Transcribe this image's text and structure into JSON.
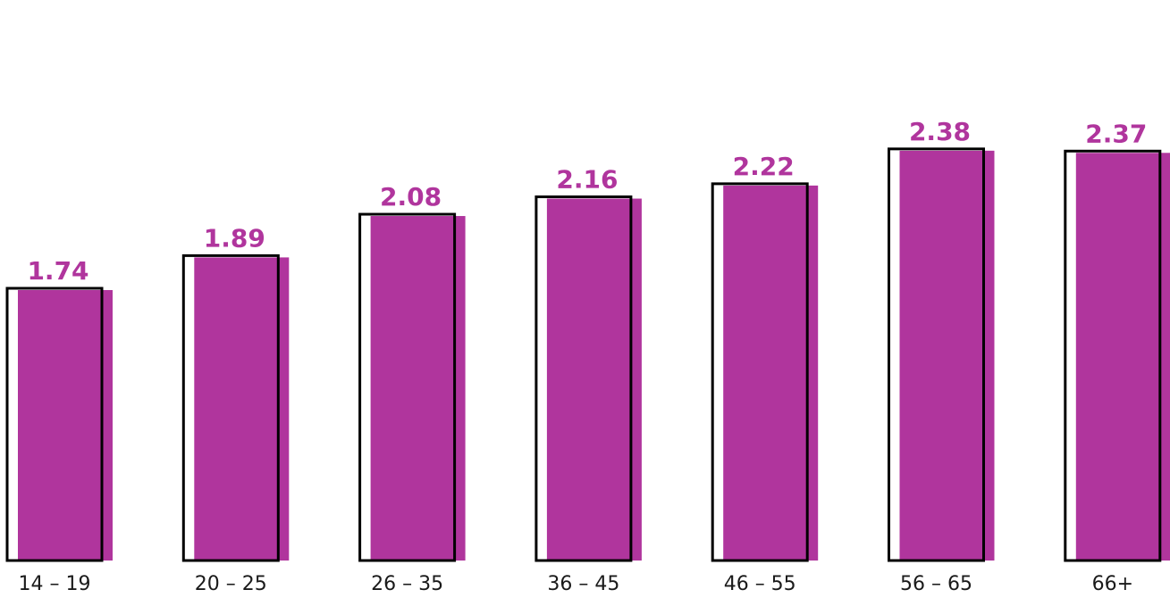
{
  "chart_data": {
    "type": "bar",
    "categories": [
      "14 – 19",
      "20 – 25",
      "26 – 35",
      "36 – 45",
      "46 – 55",
      "56 – 65",
      "66+"
    ],
    "values": [
      1.74,
      1.89,
      2.08,
      2.16,
      2.22,
      2.38,
      2.37
    ],
    "value_labels": [
      "1.74",
      "1.89",
      "2.08",
      "2.16",
      "2.22",
      "2.38",
      "2.37"
    ],
    "title": "",
    "xlabel": "",
    "ylabel": "",
    "ylim": [
      0,
      2.5
    ],
    "grid": false,
    "legend": "none",
    "colors": {
      "bar_fill": "#b0359d",
      "bar_outline": "#000000",
      "value_label": "#b0359d"
    }
  }
}
